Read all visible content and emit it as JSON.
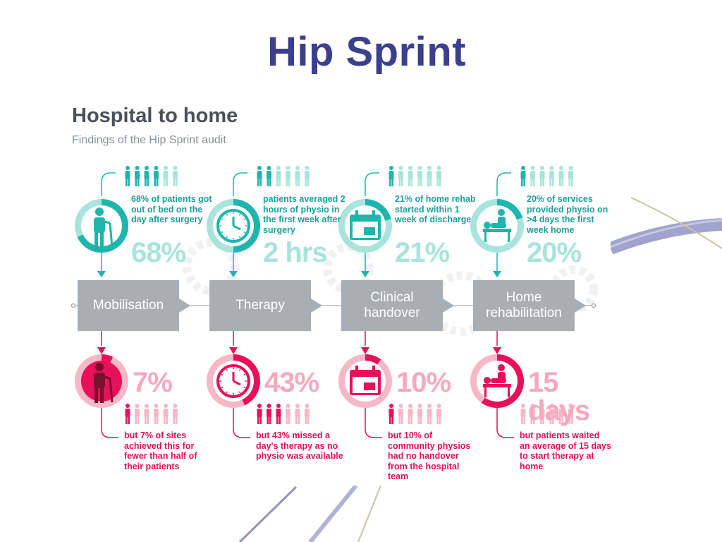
{
  "slide": {
    "title": "Hip Sprint"
  },
  "infographic": {
    "heading": "Hospital to home",
    "subheading": "Findings of the Hip Sprint audit",
    "colors": {
      "teal": "#1fb5ad",
      "teal_light": "#a8e4dc",
      "grey": "#a7aeb4",
      "pink": "#e8105a",
      "pink_light": "#f6b7c8",
      "title_blue": "#3c3f8f"
    },
    "stages": [
      {
        "label": "Mobilisation",
        "icon": "patient-with-walking-stick-icon",
        "top_text": "68% of patients got out of bed on the day after surgery",
        "top_stat": "68%",
        "top_people_filled": 4,
        "bottom_stat": "7%",
        "bottom_people_filled": 1,
        "bottom_text": "but 7% of sites achieved this for fewer than half of their patients"
      },
      {
        "label": "Therapy",
        "icon": "clock-icon",
        "top_text": "patients averaged 2 hours of physio in the first week after surgery",
        "top_stat": "2 hrs",
        "top_people_filled": 2,
        "bottom_stat": "43%",
        "bottom_people_filled": 3,
        "bottom_text": "but 43% missed a day's therapy as no physio was available"
      },
      {
        "label": "Clinical handover",
        "icon": "calendar-icon",
        "top_text": "21% of home rehab started within 1 week of discharge",
        "top_stat": "21%",
        "top_people_filled": 1,
        "bottom_stat": "10%",
        "bottom_people_filled": 1,
        "bottom_text": "but 10% of community physios had no handover from the hospital team"
      },
      {
        "label": "Home rehabilitation",
        "icon": "physiotherapist-treating-patient-icon",
        "top_text": "20% of services provided physio on >4 days the first week home",
        "top_stat": "20%",
        "top_people_filled": 1,
        "bottom_stat": "15 days",
        "bottom_people_filled": 0,
        "bottom_text": "but patients waited an average of 15 days to start therapy at home"
      }
    ]
  }
}
